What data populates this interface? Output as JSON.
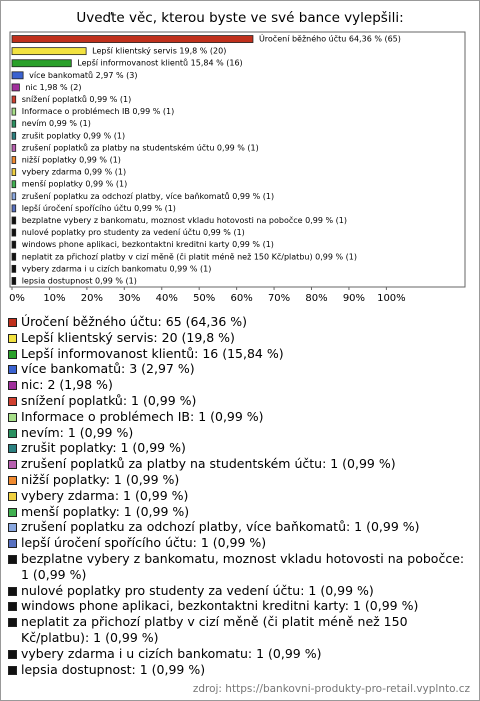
{
  "chart_data": {
    "type": "bar",
    "title": "Uveďte věc, kterou byste ve své bance vylepšili:",
    "categories": [
      "Úročení běžného účtu",
      "Lepší klientský servis",
      "Lepší informovanost klientů",
      "více bankomatů",
      "nic",
      "snížení poplatků",
      "Informace o problémech IB",
      "nevím",
      "zrušit poplatky",
      "zrušení poplatků za platby na studentském účtu",
      "nižší poplatky",
      "vybery zdarma",
      "menší poplatky",
      "zrušení poplatku za odchozí platby, více baňkomatů",
      "lepší úročení spořícího účtu",
      "bezplatne vybery z bankomatu, moznost vkladu hotovosti na pobočce",
      "nulové poplatky pro studenty za vedení účtu",
      "windows phone aplikaci, bezkontaktni kreditni karty",
      "neplatit za přichozí platby v cizí měně (či platit méně než 150 Kč/platbu)",
      "vybery zdarma i u cizích bankomatu",
      "lepsia dostupnost"
    ],
    "values": [
      64.36,
      19.8,
      15.84,
      2.97,
      1.98,
      0.99,
      0.99,
      0.99,
      0.99,
      0.99,
      0.99,
      0.99,
      0.99,
      0.99,
      0.99,
      0.99,
      0.99,
      0.99,
      0.99,
      0.99,
      0.99
    ],
    "value_labels": [
      "Úročení běžného účtu 64,36 % (65)",
      "Lepší klientský servis 19,8 % (20)",
      "Lepší informovanost klientů 15,84 % (16)",
      "více bankomatů 2,97 % (3)",
      "nic 1,98 % (2)",
      "snížení poplatků 0,99 % (1)",
      "Informace o problémech IB 0,99 % (1)",
      "nevím 0,99 % (1)",
      "zrušit poplatky 0,99 % (1)",
      "zrušení poplatků za platby na studentském účtu 0,99 % (1)",
      "nižší poplatky 0,99 % (1)",
      "vybery zdarma 0,99 % (1)",
      "menší poplatky 0,99 % (1)",
      "zrušení poplatku za odchozí platby, více baňkomatů 0,99 % (1)",
      "lepší úročení spořícího účtu 0,99 % (1)",
      "bezplatne vybery z bankomatu, moznost vkladu hotovosti na pobočce 0,99 % (1)",
      "nulové poplatky pro studenty za vedení účtu 0,99 % (1)",
      "windows phone aplikaci, bezkontaktni kreditni karty 0,99 % (1)",
      "neplatit za přichozí platby v cizí měně (či platit méně než 150 Kč/platbu) 0,99 % (1)",
      "vybery zdarma i u cizích bankomatu 0,99 % (1)",
      "lepsia dostupnost 0,99 % (1)"
    ],
    "legend": [
      "Úročení běžného účtu: 65 (64,36 %)",
      "Lepší klientský servis: 20 (19,8 %)",
      "Lepší informovanost klientů: 16 (15,84 %)",
      "více bankomatů: 3 (2,97 %)",
      "nic: 2 (1,98 %)",
      "snížení poplatků: 1 (0,99 %)",
      "Informace o problémech IB: 1 (0,99 %)",
      "nevím: 1 (0,99 %)",
      "zrušit poplatky: 1 (0,99 %)",
      "zrušení poplatků za platby na studentském účtu: 1 (0,99 %)",
      "nižší poplatky: 1 (0,99 %)",
      "vybery zdarma: 1 (0,99 %)",
      "menší poplatky: 1 (0,99 %)",
      "zrušení poplatku za odchozí platby, více baňkomatů: 1 (0,99 %)",
      "lepší úročení spořícího účtu: 1 (0,99 %)",
      "bezplatne vybery z bankomatu, moznost vkladu hotovosti na pobočce: 1 (0,99 %)",
      "nulové poplatky pro studenty za vedení účtu: 1 (0,99 %)",
      "windows phone aplikaci, bezkontaktni kreditni karty: 1 (0,99 %)",
      "neplatit za přichozí platby v cizí měně (či platit méně než 150 Kč/platbu): 1 (0,99 %)",
      "vybery zdarma i u cizích bankomatu: 1 (0,99 %)",
      "lepsia dostupnost: 1 (0,99 %)"
    ],
    "colors": [
      "#c0301c",
      "#f2e240",
      "#2aa02a",
      "#3a62d0",
      "#a0309c",
      "#d04030",
      "#a8e08a",
      "#2a9060",
      "#2a8080",
      "#b860b0",
      "#f08a30",
      "#f0d040",
      "#40b050",
      "#8aa8e0",
      "#5870c0",
      "#111111",
      "#111111",
      "#111111",
      "#111111",
      "#111111",
      "#111111"
    ],
    "xlim": [
      0,
      121
    ],
    "xticks": [
      {
        "value": 0,
        "label": "0%"
      },
      {
        "value": 10,
        "label": "10%"
      },
      {
        "value": 20,
        "label": "20%"
      },
      {
        "value": 30,
        "label": "30%"
      },
      {
        "value": 40,
        "label": "40%"
      },
      {
        "value": 50,
        "label": "50%"
      },
      {
        "value": 60,
        "label": "60%"
      },
      {
        "value": 70,
        "label": "70%"
      },
      {
        "value": 80,
        "label": "80%"
      },
      {
        "value": 90,
        "label": "90%"
      },
      {
        "value": 100,
        "label": "100%"
      }
    ]
  },
  "source": "zdroj: https://bankovni-produkty-pro-retail.vyplnto.cz"
}
